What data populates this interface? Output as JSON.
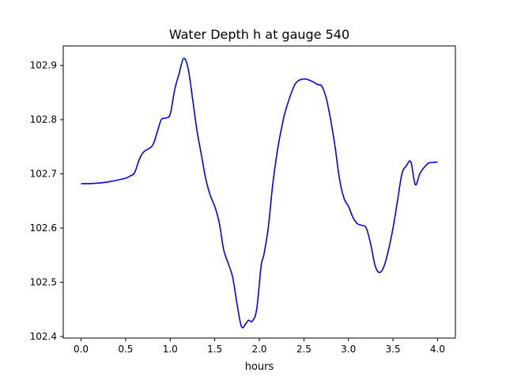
{
  "chart_data": {
    "type": "line",
    "title": "Water Depth h at gauge 540",
    "xlabel": "hours",
    "ylabel": "",
    "xlim": [
      -0.2,
      4.2
    ],
    "ylim": [
      102.397,
      102.936
    ],
    "xticks": [
      0.0,
      0.5,
      1.0,
      1.5,
      2.0,
      2.5,
      3.0,
      3.5,
      4.0
    ],
    "xtick_labels": [
      "0.0",
      "0.5",
      "1.0",
      "1.5",
      "2.0",
      "2.5",
      "3.0",
      "3.5",
      "4.0"
    ],
    "yticks": [
      102.4,
      102.5,
      102.6,
      102.7,
      102.8,
      102.9
    ],
    "ytick_labels": [
      "102.4",
      "102.5",
      "102.6",
      "102.7",
      "102.8",
      "102.9"
    ],
    "grid": false,
    "series": [
      {
        "color": "#0000ff",
        "x": [
          0.0,
          0.1,
          0.2,
          0.3,
          0.4,
          0.5,
          0.55,
          0.6,
          0.65,
          0.7,
          0.8,
          0.85,
          0.9,
          0.95,
          1.0,
          1.05,
          1.1,
          1.15,
          1.2,
          1.25,
          1.3,
          1.35,
          1.4,
          1.45,
          1.5,
          1.55,
          1.6,
          1.65,
          1.7,
          1.75,
          1.8,
          1.85,
          1.88,
          1.92,
          1.97,
          2.02,
          2.05,
          2.1,
          2.15,
          2.2,
          2.25,
          2.3,
          2.4,
          2.5,
          2.6,
          2.65,
          2.7,
          2.75,
          2.8,
          2.85,
          2.9,
          2.95,
          3.0,
          3.05,
          3.1,
          3.15,
          3.2,
          3.25,
          3.3,
          3.35,
          3.4,
          3.45,
          3.5,
          3.55,
          3.6,
          3.65,
          3.7,
          3.75,
          3.8,
          3.85,
          3.9,
          3.95,
          4.0
        ],
        "y": [
          102.682,
          102.682,
          102.683,
          102.685,
          102.688,
          102.692,
          102.696,
          102.702,
          102.725,
          102.74,
          102.752,
          102.775,
          102.8,
          102.803,
          102.81,
          102.855,
          102.885,
          102.913,
          102.895,
          102.84,
          102.78,
          102.735,
          102.69,
          102.66,
          102.64,
          102.61,
          102.56,
          102.535,
          102.51,
          102.46,
          102.418,
          102.424,
          102.43,
          102.428,
          102.45,
          102.53,
          102.55,
          102.6,
          102.68,
          102.74,
          102.785,
          102.82,
          102.865,
          102.875,
          102.87,
          102.865,
          102.862,
          102.84,
          102.8,
          102.75,
          102.69,
          102.655,
          102.64,
          102.62,
          102.608,
          102.605,
          102.6,
          102.57,
          102.53,
          102.518,
          102.53,
          102.56,
          102.6,
          102.65,
          102.7,
          102.715,
          102.722,
          102.68,
          102.7,
          102.712,
          102.72,
          102.721,
          102.722
        ]
      }
    ]
  }
}
